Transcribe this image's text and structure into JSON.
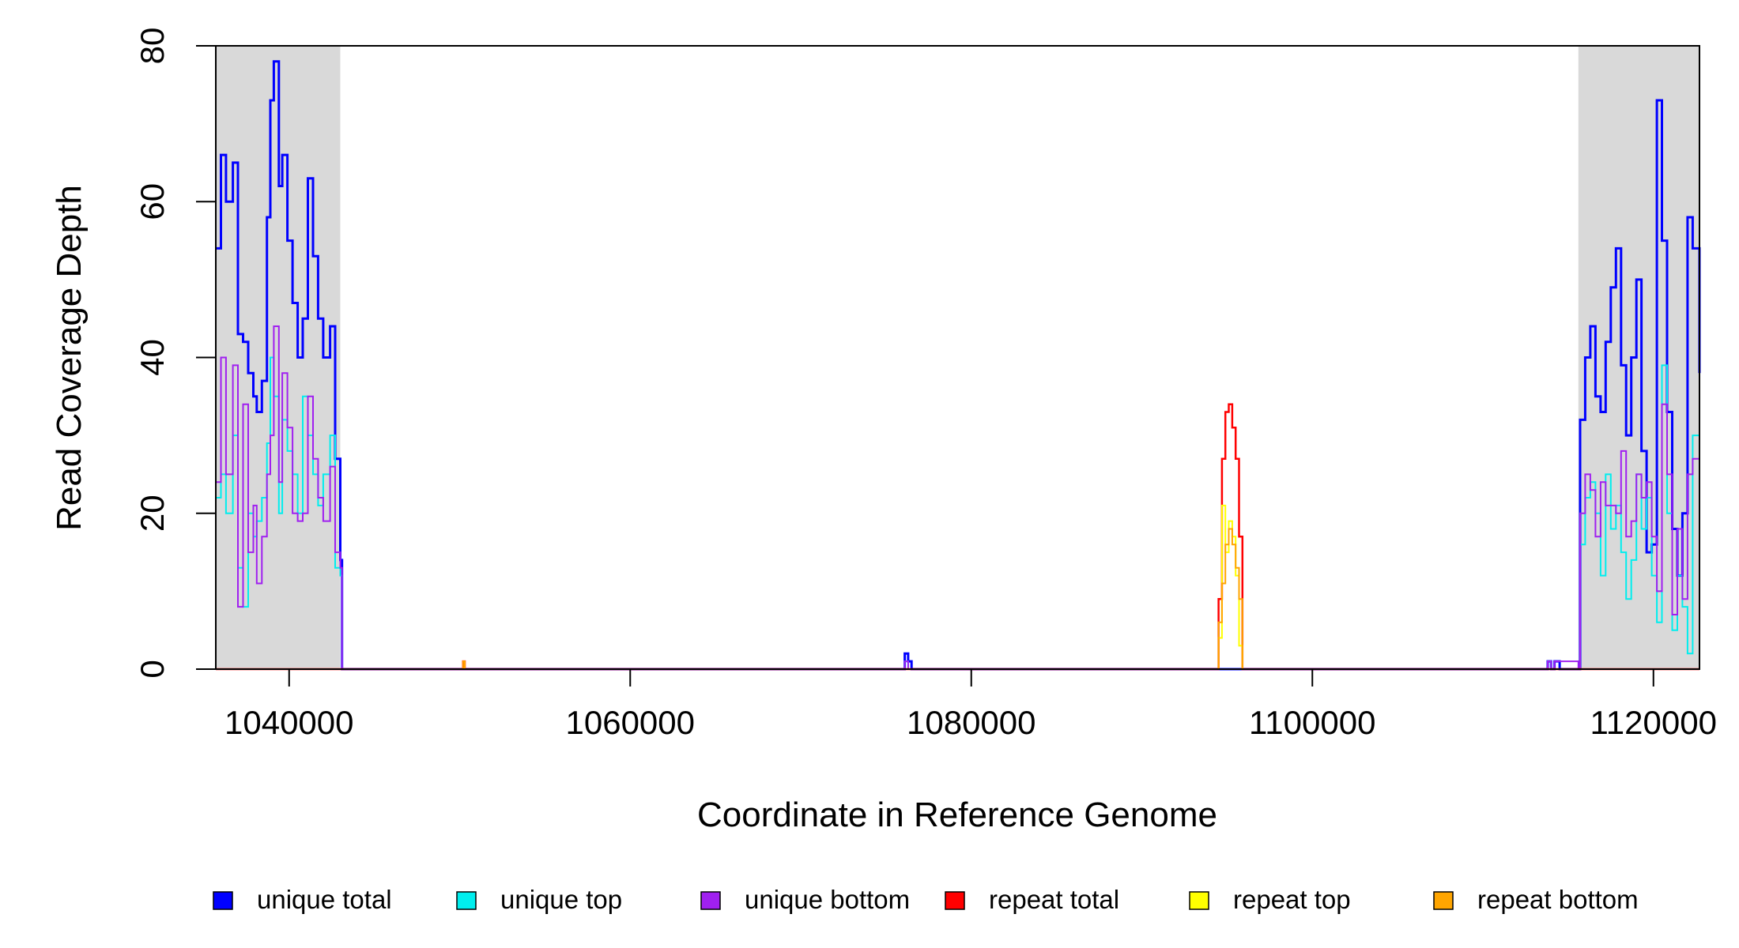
{
  "chart_data": {
    "type": "line",
    "title": "",
    "xlabel": "Coordinate in Reference Genome",
    "ylabel": "Read Coverage Depth",
    "xlim": [
      1035700,
      1122700
    ],
    "ylim": [
      0,
      80
    ],
    "xticks": [
      {
        "value": 1040000,
        "label": "1040000"
      },
      {
        "value": 1060000,
        "label": "1060000"
      },
      {
        "value": 1080000,
        "label": "1080000"
      },
      {
        "value": 1100000,
        "label": "1100000"
      },
      {
        "value": 1120000,
        "label": "1120000"
      }
    ],
    "yticks": [
      {
        "value": 0,
        "label": "0"
      },
      {
        "value": 20,
        "label": "20"
      },
      {
        "value": 40,
        "label": "40"
      },
      {
        "value": 60,
        "label": "60"
      },
      {
        "value": 80,
        "label": "80"
      }
    ],
    "shaded_regions": [
      {
        "start": 1035700,
        "end": 1043000
      },
      {
        "start": 1115600,
        "end": 1122700
      }
    ],
    "grid": false,
    "legend_position": "bottom",
    "series": [
      {
        "name": "unique total",
        "color": "#0000ff",
        "x": [
          1035700,
          1036000,
          1036300,
          1036700,
          1037000,
          1037300,
          1037600,
          1037900,
          1038100,
          1038400,
          1038700,
          1038900,
          1039100,
          1039400,
          1039600,
          1039900,
          1040200,
          1040500,
          1040800,
          1041100,
          1041400,
          1041700,
          1042000,
          1042400,
          1042700,
          1043000,
          1043100,
          1050000,
          1076100,
          1076300,
          1076500,
          1077000,
          1113800,
          1114000,
          1114200,
          1114500,
          1115600,
          1115700,
          1116000,
          1116300,
          1116600,
          1116900,
          1117200,
          1117500,
          1117800,
          1118100,
          1118400,
          1118700,
          1119000,
          1119300,
          1119600,
          1119900,
          1120200,
          1120500,
          1120800,
          1121100,
          1121400,
          1121700,
          1122000,
          1122300,
          1122700
        ],
        "y": [
          54,
          66,
          60,
          65,
          43,
          42,
          38,
          35,
          33,
          37,
          58,
          73,
          78,
          62,
          66,
          55,
          47,
          40,
          45,
          63,
          53,
          45,
          40,
          44,
          27,
          14,
          0,
          0,
          2,
          1,
          0,
          0,
          1,
          0,
          1,
          0,
          0,
          32,
          40,
          44,
          35,
          33,
          42,
          49,
          54,
          39,
          30,
          40,
          50,
          28,
          15,
          16,
          73,
          55,
          33,
          18,
          12,
          20,
          58,
          54,
          38
        ],
        "stroke_width": 3
      },
      {
        "name": "unique top",
        "color": "#00eeee",
        "x": [
          1035700,
          1036000,
          1036300,
          1036700,
          1037000,
          1037300,
          1037600,
          1037900,
          1038100,
          1038400,
          1038700,
          1038900,
          1039100,
          1039400,
          1039600,
          1039900,
          1040200,
          1040500,
          1040800,
          1041100,
          1041400,
          1041700,
          1042000,
          1042400,
          1042700,
          1043000,
          1043100,
          1076100,
          1076300,
          1076500,
          1113800,
          1114000,
          1114200,
          1115600,
          1115700,
          1116000,
          1116300,
          1116600,
          1116900,
          1117200,
          1117500,
          1117800,
          1118100,
          1118400,
          1118700,
          1119000,
          1119300,
          1119600,
          1119900,
          1120200,
          1120500,
          1120800,
          1121100,
          1121400,
          1121700,
          1122000,
          1122300,
          1122700
        ],
        "y": [
          22,
          25,
          20,
          30,
          13,
          8,
          20,
          17,
          19,
          22,
          29,
          40,
          35,
          20,
          32,
          28,
          25,
          20,
          35,
          30,
          25,
          21,
          25,
          30,
          13,
          12,
          0,
          1,
          0,
          0,
          1,
          0,
          0,
          0,
          16,
          22,
          24,
          20,
          12,
          25,
          18,
          21,
          15,
          9,
          14,
          25,
          18,
          22,
          12,
          6,
          39,
          20,
          5,
          12,
          8,
          2,
          30,
          16
        ],
        "stroke_width": 2
      },
      {
        "name": "unique bottom",
        "color": "#a020f0",
        "x": [
          1035700,
          1036000,
          1036300,
          1036700,
          1037000,
          1037300,
          1037600,
          1037900,
          1038100,
          1038400,
          1038700,
          1038900,
          1039100,
          1039400,
          1039600,
          1039900,
          1040200,
          1040500,
          1040800,
          1041100,
          1041400,
          1041700,
          1042000,
          1042400,
          1042700,
          1043000,
          1043100,
          1076100,
          1076300,
          1076500,
          1113800,
          1114000,
          1114200,
          1115600,
          1115700,
          1116000,
          1116300,
          1116600,
          1116900,
          1117200,
          1117500,
          1117800,
          1118100,
          1118400,
          1118700,
          1119000,
          1119300,
          1119600,
          1119900,
          1120200,
          1120500,
          1120800,
          1121100,
          1121400,
          1121700,
          1122000,
          1122300,
          1122700
        ],
        "y": [
          24,
          40,
          25,
          39,
          8,
          34,
          15,
          21,
          11,
          17,
          25,
          30,
          44,
          24,
          38,
          31,
          20,
          19,
          20,
          35,
          27,
          22,
          19,
          26,
          15,
          13,
          0,
          1,
          0,
          0,
          1,
          0,
          1,
          0,
          20,
          25,
          23,
          17,
          24,
          21,
          21,
          20,
          28,
          17,
          19,
          25,
          22,
          24,
          17,
          10,
          34,
          25,
          7,
          18,
          9,
          25,
          27,
          22
        ],
        "stroke_width": 2
      },
      {
        "name": "repeat total",
        "color": "#ff0000",
        "x": [
          1035700,
          1050100,
          1050200,
          1050300,
          1094300,
          1094500,
          1094700,
          1094900,
          1095100,
          1095300,
          1095500,
          1095700,
          1095900,
          1122700
        ],
        "y": [
          0,
          0,
          1,
          0,
          0,
          9,
          27,
          33,
          34,
          31,
          27,
          17,
          0,
          0
        ],
        "stroke_width": 2.5
      },
      {
        "name": "repeat top",
        "color": "#ffff00",
        "x": [
          1035700,
          1094300,
          1094500,
          1094700,
          1094900,
          1095100,
          1095300,
          1095500,
          1095700,
          1095900,
          1122700
        ],
        "y": [
          0,
          0,
          4,
          21,
          15,
          19,
          17,
          12,
          3,
          0,
          0
        ],
        "stroke_width": 2
      },
      {
        "name": "repeat bottom",
        "color": "#ffa500",
        "x": [
          1035700,
          1050100,
          1050200,
          1050300,
          1094300,
          1094500,
          1094700,
          1094900,
          1095100,
          1095300,
          1095500,
          1095700,
          1095900,
          1122700
        ],
        "y": [
          0,
          0,
          1,
          0,
          0,
          6,
          11,
          16,
          18,
          16,
          13,
          9,
          0,
          0
        ],
        "stroke_width": 2
      }
    ],
    "legend": [
      {
        "label": "unique total",
        "color": "#0000ff"
      },
      {
        "label": "unique top",
        "color": "#00eeee"
      },
      {
        "label": "unique bottom",
        "color": "#a020f0"
      },
      {
        "label": "repeat total",
        "color": "#ff0000"
      },
      {
        "label": "repeat top",
        "color": "#ffff00"
      },
      {
        "label": "repeat bottom",
        "color": "#ffa500"
      }
    ]
  }
}
